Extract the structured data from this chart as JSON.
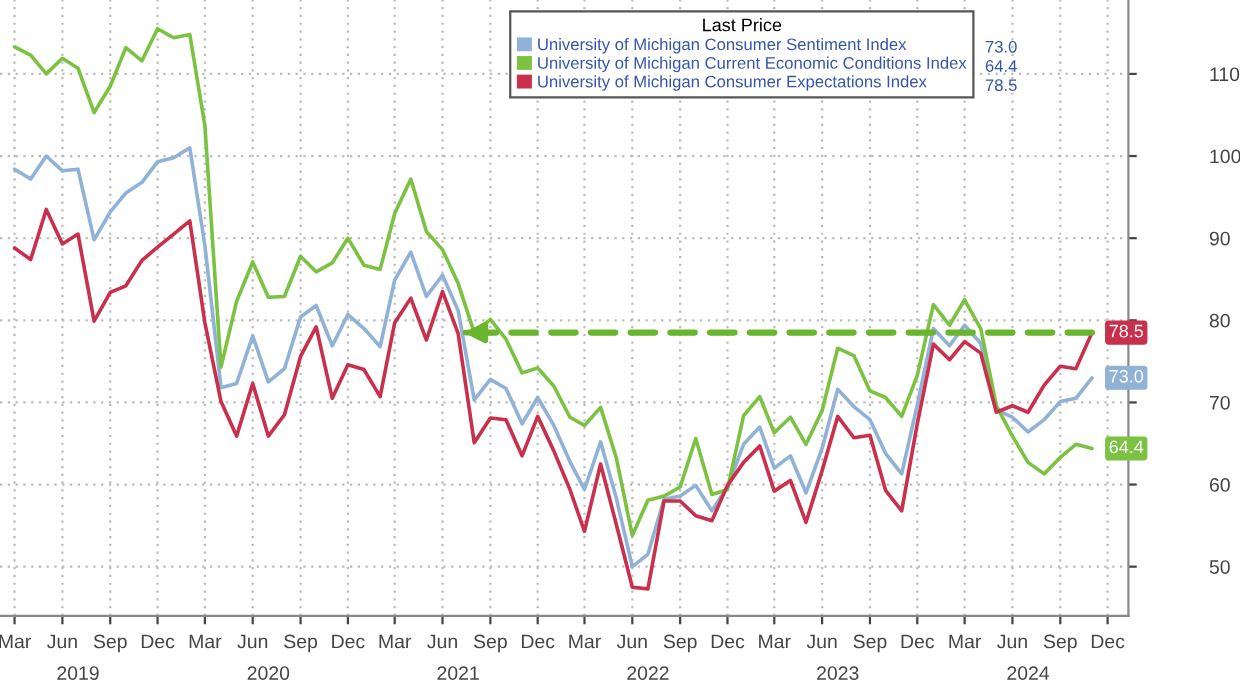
{
  "chart_data": {
    "type": "line",
    "legend_title": "Last Price",
    "x": [
      "2019-03",
      "2019-04",
      "2019-05",
      "2019-06",
      "2019-07",
      "2019-08",
      "2019-09",
      "2019-10",
      "2019-11",
      "2019-12",
      "2020-01",
      "2020-02",
      "2020-03",
      "2020-04",
      "2020-05",
      "2020-06",
      "2020-07",
      "2020-08",
      "2020-09",
      "2020-10",
      "2020-11",
      "2020-12",
      "2021-01",
      "2021-02",
      "2021-03",
      "2021-04",
      "2021-05",
      "2021-06",
      "2021-07",
      "2021-08",
      "2021-09",
      "2021-10",
      "2021-11",
      "2021-12",
      "2022-01",
      "2022-02",
      "2022-03",
      "2022-04",
      "2022-05",
      "2022-06",
      "2022-07",
      "2022-08",
      "2022-09",
      "2022-10",
      "2022-11",
      "2022-12",
      "2023-01",
      "2023-02",
      "2023-03",
      "2023-04",
      "2023-05",
      "2023-06",
      "2023-07",
      "2023-08",
      "2023-09",
      "2023-10",
      "2023-11",
      "2023-12",
      "2024-01",
      "2024-02",
      "2024-03",
      "2024-04",
      "2024-05",
      "2024-06",
      "2024-07",
      "2024-08",
      "2024-09",
      "2024-10",
      "2024-11"
    ],
    "series": [
      {
        "name": "University of Michigan Consumer Sentiment Index",
        "color": "#8fb2d6",
        "values": [
          98.4,
          97.2,
          100.0,
          98.2,
          98.4,
          89.8,
          93.2,
          95.5,
          96.8,
          99.3,
          99.8,
          101.0,
          89.1,
          71.8,
          72.3,
          78.1,
          72.5,
          74.1,
          80.4,
          81.8,
          76.9,
          80.7,
          79.0,
          76.8,
          84.9,
          88.3,
          82.9,
          85.5,
          81.2,
          70.3,
          72.8,
          71.7,
          67.4,
          70.6,
          67.2,
          62.8,
          59.4,
          65.2,
          58.4,
          50.0,
          51.5,
          58.2,
          58.6,
          59.9,
          56.8,
          59.7,
          64.9,
          67.0,
          62.0,
          63.5,
          59.0,
          64.4,
          71.6,
          69.5,
          67.9,
          63.8,
          61.3,
          69.7,
          79.0,
          76.9,
          79.4,
          77.2,
          69.1,
          68.2,
          66.4,
          67.9,
          70.1,
          70.5,
          73.0
        ],
        "value_labels": [
          null,
          null,
          null,
          null,
          null,
          null,
          null,
          null,
          null,
          null,
          null,
          null,
          null,
          null,
          null,
          null,
          null,
          null,
          null,
          null,
          null,
          null,
          null,
          null,
          null,
          null,
          null,
          null,
          null,
          null,
          null,
          null,
          null,
          null,
          null,
          null,
          null,
          null,
          null,
          null,
          null,
          null,
          null,
          null,
          null,
          null,
          null,
          null,
          null,
          null,
          null,
          null,
          null,
          null,
          null,
          null,
          null,
          null,
          null,
          null,
          null,
          null,
          null,
          null,
          null,
          null,
          null,
          null,
          "73.0"
        ]
      },
      {
        "name": "University of Michigan Current Economic Conditions Index",
        "color": "#7cc242",
        "values": [
          113.3,
          112.3,
          110.0,
          111.9,
          110.7,
          105.3,
          108.5,
          113.2,
          111.6,
          115.5,
          114.4,
          114.8,
          103.7,
          74.3,
          82.3,
          87.1,
          82.8,
          82.9,
          87.8,
          85.9,
          87.0,
          90.0,
          86.7,
          86.2,
          93.0,
          97.2,
          90.8,
          88.6,
          84.5,
          78.5,
          80.1,
          77.7,
          73.6,
          74.2,
          72.0,
          68.2,
          67.2,
          69.4,
          63.3,
          53.8,
          58.1,
          58.6,
          59.7,
          65.6,
          58.8,
          59.4,
          68.4,
          70.7,
          66.3,
          68.2,
          64.9,
          69.0,
          76.6,
          75.7,
          71.4,
          70.6,
          68.3,
          73.3,
          81.9,
          79.4,
          82.5,
          79.0,
          69.6,
          65.9,
          62.7,
          61.3,
          63.3,
          64.9,
          64.4
        ],
        "value_labels": [
          null,
          null,
          null,
          null,
          null,
          null,
          null,
          null,
          null,
          null,
          null,
          null,
          null,
          null,
          null,
          null,
          null,
          null,
          null,
          null,
          null,
          null,
          null,
          null,
          null,
          null,
          null,
          null,
          null,
          null,
          null,
          null,
          null,
          null,
          null,
          null,
          null,
          null,
          null,
          null,
          null,
          null,
          null,
          null,
          null,
          null,
          null,
          null,
          null,
          null,
          null,
          null,
          null,
          null,
          null,
          null,
          null,
          null,
          null,
          null,
          null,
          null,
          null,
          null,
          null,
          null,
          null,
          null,
          "64.4"
        ]
      },
      {
        "name": "University of Michigan Consumer Expectations Index",
        "color": "#c8304c",
        "values": [
          88.8,
          87.4,
          93.5,
          89.3,
          90.5,
          79.9,
          83.4,
          84.2,
          87.3,
          88.9,
          90.5,
          92.1,
          79.7,
          70.1,
          65.9,
          72.3,
          65.9,
          68.5,
          75.6,
          79.2,
          70.5,
          74.6,
          74.0,
          70.7,
          79.7,
          82.7,
          77.6,
          83.5,
          78.4,
          65.1,
          68.1,
          67.9,
          63.5,
          68.3,
          64.1,
          59.4,
          54.3,
          62.5,
          55.2,
          47.5,
          47.3,
          58.0,
          58.0,
          56.2,
          55.6,
          59.9,
          62.7,
          64.7,
          59.2,
          60.5,
          55.4,
          61.7,
          68.3,
          65.7,
          66.0,
          59.3,
          56.8,
          67.4,
          77.1,
          75.2,
          77.4,
          76.0,
          68.8,
          69.6,
          68.8,
          72.1,
          74.4,
          74.1,
          78.5
        ],
        "value_labels": [
          null,
          null,
          null,
          null,
          null,
          null,
          null,
          null,
          null,
          null,
          null,
          null,
          null,
          null,
          null,
          null,
          null,
          null,
          null,
          null,
          null,
          null,
          null,
          null,
          null,
          null,
          null,
          null,
          null,
          null,
          null,
          null,
          null,
          null,
          null,
          null,
          null,
          null,
          null,
          null,
          null,
          null,
          null,
          null,
          null,
          null,
          null,
          null,
          null,
          null,
          null,
          null,
          null,
          null,
          null,
          null,
          null,
          null,
          null,
          null,
          null,
          null,
          null,
          null,
          null,
          null,
          null,
          null,
          "78.5"
        ]
      },
      {
        "type": "line",
        "x": [
          "2024-11",
          "2021-07"
        ],
        "values": [
          78.5,
          78.5
        ],
        "color": "#6ab52e",
        "line_style": "dashed"
      }
    ],
    "xlim": [
      "2019-02-01",
      "2025-01-10"
    ],
    "x2lim": [
      "2019-02-01",
      "2025-01-10"
    ],
    "ylim": [
      44,
      119
    ],
    "xticks": [
      {
        "value": "2019-03",
        "label": "Mar"
      },
      {
        "value": "2019-06",
        "label": "Jun"
      },
      {
        "value": "2019-09",
        "label": "Sep"
      },
      {
        "value": "2019-12",
        "label": "Dec"
      },
      {
        "value": "2020-03",
        "label": "Mar"
      },
      {
        "value": "2020-06",
        "label": "Jun"
      },
      {
        "value": "2020-09",
        "label": "Sep"
      },
      {
        "value": "2020-12",
        "label": "Dec"
      },
      {
        "value": "2021-03",
        "label": "Mar"
      },
      {
        "value": "2021-06",
        "label": "Jun"
      },
      {
        "value": "2021-09",
        "label": "Sep"
      },
      {
        "value": "2021-12",
        "label": "Dec"
      },
      {
        "value": "2022-03",
        "label": "Mar"
      },
      {
        "value": "2022-06",
        "label": "Jun"
      },
      {
        "value": "2022-09",
        "label": "Sep"
      },
      {
        "value": "2022-12",
        "label": "Dec"
      },
      {
        "value": "2023-03",
        "label": "Mar"
      },
      {
        "value": "2023-06",
        "label": "Jun"
      },
      {
        "value": "2023-09",
        "label": "Sep"
      },
      {
        "value": "2023-12",
        "label": "Dec"
      },
      {
        "value": "2024-03",
        "label": "Mar"
      },
      {
        "value": "2024-06",
        "label": "Jun"
      },
      {
        "value": "2024-09",
        "label": "Sep"
      },
      {
        "value": "2024-12",
        "label": "Dec"
      }
    ],
    "x2ticks": [
      {
        "value": "2019-07-01",
        "label": "2019"
      },
      {
        "value": "2020-07-01",
        "label": "2020"
      },
      {
        "value": "2021-07-01",
        "label": "2021"
      },
      {
        "value": "2022-07-01",
        "label": "2022"
      },
      {
        "value": "2023-07-01",
        "label": "2023"
      },
      {
        "value": "2024-07-01",
        "label": "2024"
      }
    ],
    "yticks": [
      50,
      60,
      70,
      80,
      90,
      100,
      110
    ],
    "grid": true,
    "legend": "top right",
    "marker": "none",
    "line_style": "solid"
  }
}
